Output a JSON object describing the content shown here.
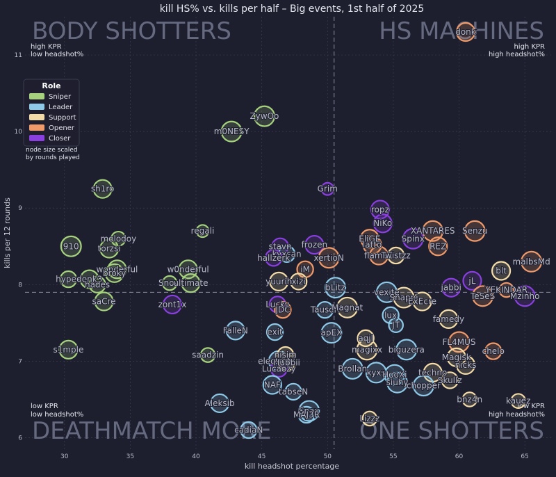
{
  "chart_data": {
    "type": "scatter",
    "title": "kill HS% vs. kills per half – Big events, 1st half of 2025",
    "xlabel": "kill headshot percentage",
    "ylabel": "kills per 12 rounds",
    "xlim": [
      27,
      67
    ],
    "ylim": [
      5.85,
      11.5
    ],
    "xticks": [
      30,
      35,
      40,
      45,
      50,
      55,
      60,
      65
    ],
    "yticks": [
      6,
      7,
      8,
      9,
      10,
      11
    ],
    "grid": true,
    "mean_x": 50.5,
    "mean_y": 7.9,
    "quadrants": {
      "top_left": "BODY SHOTTERS",
      "top_right": "HS MACHINES",
      "bottom_left": "DEATHMATCH MORE",
      "bottom_right": "ONE SHOTTERS"
    },
    "corners": {
      "top_left": [
        "high KPR",
        "low headshot%"
      ],
      "top_right": [
        "high KPR",
        "high headshot%"
      ],
      "bottom_left": [
        "low KPR",
        "low headshot%"
      ],
      "bottom_right": [
        "low KPR",
        "high headshot%"
      ]
    },
    "legend": {
      "title": "Role",
      "placement": "top-left",
      "note": [
        "node size scaled",
        "by rounds played"
      ],
      "roles": [
        {
          "name": "Sniper",
          "color": "#a6d27e"
        },
        {
          "name": "Leader",
          "color": "#8ec9e8"
        },
        {
          "name": "Support",
          "color": "#f4dca8"
        },
        {
          "name": "Opener",
          "color": "#f09a6a"
        },
        {
          "name": "Closer",
          "color": "#8a3fe0"
        }
      ]
    },
    "points": [
      {
        "label": "donk",
        "x": 60.5,
        "y": 11.3,
        "role": "Opener",
        "size": 0.5
      },
      {
        "label": "ZywOo",
        "x": 45.2,
        "y": 10.2,
        "role": "Sniper",
        "size": 0.6
      },
      {
        "label": "m0NESY",
        "x": 42.7,
        "y": 10.0,
        "role": "Sniper",
        "size": 0.6
      },
      {
        "label": "sh1ro",
        "x": 32.9,
        "y": 9.25,
        "role": "Sniper",
        "size": 0.5
      },
      {
        "label": "Grim",
        "x": 50.0,
        "y": 9.25,
        "role": "Closer",
        "size": 0.2
      },
      {
        "label": "ropz",
        "x": 54.0,
        "y": 8.98,
        "role": "Closer",
        "size": 0.5
      },
      {
        "label": "NiKo",
        "x": 54.2,
        "y": 8.8,
        "role": "Closer",
        "size": 0.5
      },
      {
        "label": "XANTARES",
        "x": 58.0,
        "y": 8.7,
        "role": "Opener",
        "size": 0.6
      },
      {
        "label": "Senzu",
        "x": 61.2,
        "y": 8.7,
        "role": "Opener",
        "size": 0.6
      },
      {
        "label": "910",
        "x": 30.5,
        "y": 8.5,
        "role": "Sniper",
        "size": 0.6
      },
      {
        "label": "molodoy",
        "x": 34.1,
        "y": 8.6,
        "role": "Sniper",
        "size": 0.3
      },
      {
        "label": "torzsi",
        "x": 33.4,
        "y": 8.47,
        "role": "Sniper",
        "size": 0.5
      },
      {
        "label": "regali",
        "x": 40.5,
        "y": 8.7,
        "role": "Sniper",
        "size": 0.2
      },
      {
        "label": "stavn",
        "x": 46.4,
        "y": 8.5,
        "role": "Closer",
        "size": 0.4
      },
      {
        "label": "frozen",
        "x": 49.0,
        "y": 8.52,
        "role": "Closer",
        "size": 0.5
      },
      {
        "label": "xertioN",
        "x": 50.1,
        "y": 8.35,
        "role": "Opener",
        "size": 0.6
      },
      {
        "label": "iM",
        "x": 48.3,
        "y": 8.2,
        "role": "Opener",
        "size": 0.4
      },
      {
        "label": "kyxsan",
        "x": 46.9,
        "y": 8.4,
        "role": "Leader",
        "size": 0.4
      },
      {
        "label": "hallzerk",
        "x": 45.9,
        "y": 8.35,
        "role": "Closer",
        "size": 0.4
      },
      {
        "label": "EliGE",
        "x": 53.2,
        "y": 8.6,
        "role": "Opener",
        "size": 0.5
      },
      {
        "label": "latto",
        "x": 53.4,
        "y": 8.52,
        "role": "Opener",
        "size": 0.5
      },
      {
        "label": "Spinx",
        "x": 56.5,
        "y": 8.6,
        "role": "Closer",
        "size": 0.6
      },
      {
        "label": "REZ",
        "x": 58.4,
        "y": 8.5,
        "role": "Opener",
        "size": 0.5
      },
      {
        "label": "flameZ",
        "x": 53.9,
        "y": 8.38,
        "role": "Opener",
        "size": 0.5
      },
      {
        "label": "Twistzz",
        "x": 55.2,
        "y": 8.38,
        "role": "Support",
        "size": 0.4
      },
      {
        "label": "malbsMd",
        "x": 65.5,
        "y": 8.3,
        "role": "Opener",
        "size": 0.6
      },
      {
        "label": "w0nderful",
        "x": 39.4,
        "y": 8.2,
        "role": "Sniper",
        "size": 0.5
      },
      {
        "label": "wonderful",
        "x": 34.0,
        "y": 8.2,
        "role": "Sniper",
        "size": 0.5
      },
      {
        "label": "broky",
        "x": 33.8,
        "y": 8.15,
        "role": "Sniper",
        "size": 0.5
      },
      {
        "label": "hypex",
        "x": 30.3,
        "y": 8.07,
        "role": "Sniper",
        "size": 0.4
      },
      {
        "label": "donk3",
        "x": 31.9,
        "y": 8.07,
        "role": "Sniper",
        "size": 0.5
      },
      {
        "label": "hades",
        "x": 32.5,
        "y": 8.0,
        "role": "Sniper",
        "size": 0.4
      },
      {
        "label": "Snow",
        "x": 38.0,
        "y": 8.02,
        "role": "Sniper",
        "size": 0.3
      },
      {
        "label": "ultimate",
        "x": 39.6,
        "y": 8.02,
        "role": "Sniper",
        "size": 0.5
      },
      {
        "label": "yuurih",
        "x": 46.3,
        "y": 8.04,
        "role": "Support",
        "size": 0.5
      },
      {
        "label": "xizi",
        "x": 47.8,
        "y": 8.04,
        "role": "Support",
        "size": 0.4
      },
      {
        "label": "bLitz",
        "x": 50.6,
        "y": 7.96,
        "role": "Leader",
        "size": 0.6
      },
      {
        "label": "jabbi",
        "x": 59.4,
        "y": 7.96,
        "role": "Closer",
        "size": 0.5
      },
      {
        "label": "jL",
        "x": 61.0,
        "y": 8.05,
        "role": "Closer",
        "size": 0.5
      },
      {
        "label": "blt",
        "x": 63.2,
        "y": 8.18,
        "role": "Support",
        "size": 0.5
      },
      {
        "label": "YEKINDAR",
        "x": 63.6,
        "y": 7.93,
        "role": "Opener",
        "size": 0.3
      },
      {
        "label": "TeSeS",
        "x": 61.8,
        "y": 7.85,
        "role": "Opener",
        "size": 0.6
      },
      {
        "label": "Mzinho",
        "x": 65.0,
        "y": 7.85,
        "role": "Closer",
        "size": 0.6
      },
      {
        "label": "saCre",
        "x": 33.0,
        "y": 7.78,
        "role": "Sniper",
        "size": 0.5
      },
      {
        "label": "zont1x",
        "x": 38.2,
        "y": 7.74,
        "role": "Closer",
        "size": 0.5
      },
      {
        "label": "Lucky",
        "x": 46.2,
        "y": 7.74,
        "role": "Closer",
        "size": 0.4
      },
      {
        "label": "JDC",
        "x": 46.6,
        "y": 7.67,
        "role": "Opener",
        "size": 0.4
      },
      {
        "label": "Tauson",
        "x": 49.8,
        "y": 7.67,
        "role": "Leader",
        "size": 0.4
      },
      {
        "label": "Magnat",
        "x": 51.5,
        "y": 7.7,
        "role": "Support",
        "size": 0.6
      },
      {
        "label": "vexite",
        "x": 54.5,
        "y": 7.9,
        "role": "Leader",
        "size": 0.6
      },
      {
        "label": "Snappi",
        "x": 55.8,
        "y": 7.83,
        "role": "Support",
        "size": 0.6
      },
      {
        "label": "ExEcre",
        "x": 57.2,
        "y": 7.78,
        "role": "Support",
        "size": 0.5
      },
      {
        "label": "famedy",
        "x": 59.2,
        "y": 7.55,
        "role": "Support",
        "size": 0.5
      },
      {
        "label": "lux",
        "x": 54.8,
        "y": 7.6,
        "role": "Leader",
        "size": 0.4
      },
      {
        "label": "JT",
        "x": 55.2,
        "y": 7.47,
        "role": "Leader",
        "size": 0.3
      },
      {
        "label": "FalleN",
        "x": 43.0,
        "y": 7.4,
        "role": "Leader",
        "size": 0.5
      },
      {
        "label": "exit",
        "x": 46.0,
        "y": 7.38,
        "role": "Leader",
        "size": 0.4
      },
      {
        "label": "apEX",
        "x": 50.3,
        "y": 7.37,
        "role": "Leader",
        "size": 0.6
      },
      {
        "label": "s1mple",
        "x": 30.3,
        "y": 7.15,
        "role": "Sniper",
        "size": 0.5
      },
      {
        "label": "saadzin",
        "x": 40.9,
        "y": 7.08,
        "role": "Sniper",
        "size": 0.3
      },
      {
        "label": "aqjl",
        "x": 52.9,
        "y": 7.3,
        "role": "Support",
        "size": 0.4
      },
      {
        "label": "magixx",
        "x": 53.0,
        "y": 7.15,
        "role": "Support",
        "size": 0.6
      },
      {
        "label": "biguzera",
        "x": 56.0,
        "y": 7.15,
        "role": "Leader",
        "size": 0.6
      },
      {
        "label": "FL4MUS",
        "x": 60.0,
        "y": 7.25,
        "role": "Opener",
        "size": 0.6
      },
      {
        "label": "chelo",
        "x": 62.6,
        "y": 7.13,
        "role": "Opener",
        "size": 0.4
      },
      {
        "label": "Magisk",
        "x": 59.8,
        "y": 7.05,
        "role": "Support",
        "size": 0.5
      },
      {
        "label": "nicks",
        "x": 60.5,
        "y": 6.95,
        "role": "Support",
        "size": 0.5
      },
      {
        "label": "electroNic",
        "x": 46.3,
        "y": 7.0,
        "role": "Leader",
        "size": 0.6
      },
      {
        "label": "nisim",
        "x": 46.8,
        "y": 7.08,
        "role": "Support",
        "size": 0.4
      },
      {
        "label": "Hubbii",
        "x": 46.9,
        "y": 6.98,
        "role": "Support",
        "size": 0.4
      },
      {
        "label": "Lucaozy",
        "x": 46.3,
        "y": 6.9,
        "role": "Closer",
        "size": 0.4
      },
      {
        "label": "Brollan",
        "x": 51.9,
        "y": 6.9,
        "role": "Leader",
        "size": 0.6
      },
      {
        "label": "kyxs",
        "x": 53.7,
        "y": 6.85,
        "role": "Leader",
        "size": 0.6
      },
      {
        "label": "HooXi",
        "x": 55.1,
        "y": 6.82,
        "role": "Leader",
        "size": 0.6
      },
      {
        "label": "techno",
        "x": 58.0,
        "y": 6.85,
        "role": "Support",
        "size": 0.5
      },
      {
        "label": "siuhy",
        "x": 55.3,
        "y": 6.72,
        "role": "Leader",
        "size": 0.6
      },
      {
        "label": "chopper",
        "x": 57.3,
        "y": 6.68,
        "role": "Leader",
        "size": 0.6
      },
      {
        "label": "Skullz",
        "x": 59.3,
        "y": 6.75,
        "role": "Support",
        "size": 0.4
      },
      {
        "label": "NAF",
        "x": 45.8,
        "y": 6.69,
        "role": "Leader",
        "size": 0.5
      },
      {
        "label": "tabseN",
        "x": 47.4,
        "y": 6.6,
        "role": "Leader",
        "size": 0.4
      },
      {
        "label": "bnz4n",
        "x": 60.8,
        "y": 6.5,
        "role": "Support",
        "size": 0.3
      },
      {
        "label": "kauez",
        "x": 64.5,
        "y": 6.48,
        "role": "Support",
        "size": 0.3
      },
      {
        "label": "Aleksib",
        "x": 41.8,
        "y": 6.45,
        "role": "Leader",
        "size": 0.5
      },
      {
        "label": "Snax",
        "x": 48.6,
        "y": 6.35,
        "role": "Leader",
        "size": 0.6
      },
      {
        "label": "MAJ3R",
        "x": 48.4,
        "y": 6.3,
        "role": "Leader",
        "size": 0.4
      },
      {
        "label": "Lizzz",
        "x": 53.2,
        "y": 6.25,
        "role": "Support",
        "size": 0.3
      },
      {
        "label": "cadiaN",
        "x": 44.0,
        "y": 6.1,
        "role": "Leader",
        "size": 0.4
      }
    ]
  }
}
